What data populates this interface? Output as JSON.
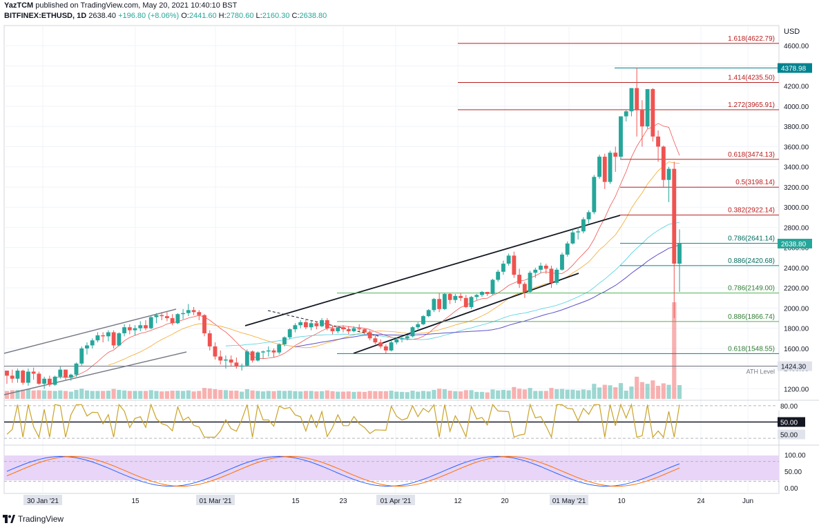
{
  "header": {
    "author": "YazTCM",
    "published": "published on TradingView.com, May 20, 2021 10:40:10 BST",
    "symbol": "BITFINEX:ETHUSD, 1D",
    "last": "2638.40",
    "change": "+196.80 (+8.06%)",
    "o_label": "O:",
    "o": "2441.60",
    "h_label": "H:",
    "h": "2780.60",
    "l_label": "L:",
    "l": "2160.30",
    "c_label": "C:",
    "c": "2638.80"
  },
  "currency": "USD",
  "footer_logo": "TradingView",
  "colors": {
    "up": "#26a69a",
    "down": "#ef5350",
    "fib": "#b71c1c",
    "green_line": "#4caf50",
    "teal_line": "#00838f",
    "rsi": "#c9a227",
    "stoch_bg": "#e8d5f7"
  },
  "chart_data": {
    "type": "candlestick",
    "symbol": "BITFINEX:ETHUSD",
    "timeframe": "1D",
    "price_axis": {
      "ticks": [
        "1200.00",
        "1400.00",
        "1600.00",
        "1800.00",
        "2000.00",
        "2200.00",
        "2400.00",
        "2600.00",
        "2800.00",
        "3000.00",
        "3200.00",
        "3400.00",
        "3600.00",
        "3800.00",
        "4000.00",
        "4200.00",
        "4400.00",
        "4600.00"
      ],
      "range": [
        1100,
        4800
      ]
    },
    "x_axis": {
      "ticks": [
        "30 Jan '21",
        "15",
        "01 Mar '21",
        "15",
        "23",
        "01 Apr '21",
        "12",
        "20",
        "01 May '21",
        "10",
        "24",
        "Jun"
      ]
    },
    "price_labels": {
      "current": "2638.80",
      "high": "4378.98",
      "ath": "1424.30",
      "ath_label": "ATH Level"
    },
    "fib_levels": [
      {
        "label": "1.618(4622.79)",
        "value": 4622.79
      },
      {
        "label": "1.414(4235.50)",
        "value": 4235.5
      },
      {
        "label": "1.272(3965.91)",
        "value": 3965.91
      },
      {
        "label": "0.618(3474.13)",
        "value": 3474.13
      },
      {
        "label": "0.5(3198.14)",
        "value": 3198.14
      },
      {
        "label": "0.382(2922.14)",
        "value": 2922.14
      },
      {
        "label": "0.786(2641.14)",
        "value": 2641.14
      },
      {
        "label": "0.886(2420.68)",
        "value": 2420.68
      },
      {
        "label": "0.786(2149.00)",
        "value": 2149.0
      },
      {
        "label": "0.886(1866.74)",
        "value": 1866.74
      },
      {
        "label": "0.618(1548.55)",
        "value": 1548.55
      }
    ],
    "candles": [
      [
        1380,
        1350,
        1250,
        1330
      ],
      [
        1330,
        1390,
        1260,
        1300
      ],
      [
        1300,
        1400,
        1260,
        1380
      ],
      [
        1380,
        1390,
        1240,
        1260
      ],
      [
        1260,
        1400,
        1230,
        1370
      ],
      [
        1370,
        1410,
        1290,
        1350
      ],
      [
        1350,
        1370,
        1240,
        1250
      ],
      [
        1250,
        1320,
        1200,
        1300
      ],
      [
        1300,
        1330,
        1220,
        1240
      ],
      [
        1240,
        1330,
        1230,
        1320
      ],
      [
        1320,
        1420,
        1300,
        1390
      ],
      [
        1390,
        1390,
        1290,
        1310
      ],
      [
        1310,
        1350,
        1280,
        1340
      ],
      [
        1340,
        1460,
        1320,
        1450
      ],
      [
        1450,
        1620,
        1430,
        1600
      ],
      [
        1600,
        1660,
        1540,
        1630
      ],
      [
        1630,
        1700,
        1600,
        1680
      ],
      [
        1680,
        1760,
        1660,
        1730
      ],
      [
        1730,
        1760,
        1660,
        1720
      ],
      [
        1720,
        1780,
        1670,
        1760
      ],
      [
        1760,
        1780,
        1600,
        1630
      ],
      [
        1630,
        1760,
        1620,
        1750
      ],
      [
        1750,
        1840,
        1720,
        1810
      ],
      [
        1810,
        1840,
        1740,
        1780
      ],
      [
        1780,
        1830,
        1730,
        1800
      ],
      [
        1800,
        1870,
        1770,
        1830
      ],
      [
        1830,
        1880,
        1780,
        1800
      ],
      [
        1800,
        1920,
        1790,
        1910
      ],
      [
        1910,
        1950,
        1850,
        1930
      ],
      [
        1930,
        1960,
        1880,
        1920
      ],
      [
        1920,
        1960,
        1870,
        1900
      ],
      [
        1900,
        1940,
        1830,
        1850
      ],
      [
        1850,
        1950,
        1840,
        1940
      ],
      [
        1940,
        1990,
        1890,
        1950
      ],
      [
        1950,
        2040,
        1920,
        1980
      ],
      [
        1980,
        2010,
        1930,
        1960
      ],
      [
        1960,
        1980,
        1880,
        1930
      ],
      [
        1930,
        1940,
        1720,
        1750
      ],
      [
        1750,
        1780,
        1580,
        1620
      ],
      [
        1620,
        1660,
        1490,
        1520
      ],
      [
        1520,
        1580,
        1440,
        1480
      ],
      [
        1480,
        1530,
        1400,
        1490
      ],
      [
        1490,
        1530,
        1420,
        1460
      ],
      [
        1460,
        1510,
        1400,
        1420
      ],
      [
        1420,
        1450,
        1380,
        1430
      ],
      [
        1430,
        1590,
        1420,
        1570
      ],
      [
        1570,
        1580,
        1460,
        1480
      ],
      [
        1480,
        1570,
        1470,
        1560
      ],
      [
        1560,
        1580,
        1500,
        1570
      ],
      [
        1570,
        1620,
        1520,
        1580
      ],
      [
        1580,
        1600,
        1510,
        1560
      ],
      [
        1560,
        1650,
        1540,
        1640
      ],
      [
        1640,
        1720,
        1620,
        1710
      ],
      [
        1710,
        1800,
        1690,
        1790
      ],
      [
        1790,
        1850,
        1760,
        1830
      ],
      [
        1830,
        1880,
        1800,
        1860
      ],
      [
        1860,
        1890,
        1790,
        1810
      ],
      [
        1810,
        1880,
        1780,
        1850
      ],
      [
        1850,
        1870,
        1790,
        1820
      ],
      [
        1820,
        1900,
        1810,
        1880
      ],
      [
        1880,
        1900,
        1780,
        1800
      ],
      [
        1800,
        1830,
        1740,
        1770
      ],
      [
        1770,
        1820,
        1750,
        1810
      ],
      [
        1810,
        1830,
        1760,
        1790
      ],
      [
        1790,
        1820,
        1740,
        1770
      ],
      [
        1770,
        1820,
        1760,
        1800
      ],
      [
        1800,
        1840,
        1770,
        1790
      ],
      [
        1790,
        1800,
        1740,
        1760
      ],
      [
        1760,
        1780,
        1680,
        1700
      ],
      [
        1700,
        1730,
        1640,
        1660
      ],
      [
        1660,
        1690,
        1600,
        1620
      ],
      [
        1620,
        1640,
        1550,
        1580
      ],
      [
        1580,
        1680,
        1570,
        1660
      ],
      [
        1660,
        1710,
        1640,
        1690
      ],
      [
        1690,
        1720,
        1660,
        1700
      ],
      [
        1700,
        1730,
        1680,
        1720
      ],
      [
        1720,
        1820,
        1710,
        1810
      ],
      [
        1810,
        1860,
        1790,
        1840
      ],
      [
        1840,
        1930,
        1830,
        1920
      ],
      [
        1920,
        1990,
        1910,
        1980
      ],
      [
        1980,
        2100,
        1960,
        2090
      ],
      [
        2090,
        2150,
        1960,
        1990
      ],
      [
        1990,
        2150,
        1980,
        2140
      ],
      [
        2140,
        2150,
        2040,
        2080
      ],
      [
        2080,
        2140,
        2050,
        2120
      ],
      [
        2120,
        2150,
        2070,
        2100
      ],
      [
        2100,
        2130,
        2000,
        2010
      ],
      [
        2010,
        2120,
        1990,
        2110
      ],
      [
        2110,
        2140,
        2080,
        2130
      ],
      [
        2130,
        2170,
        2110,
        2160
      ],
      [
        2160,
        2160,
        2120,
        2140
      ],
      [
        2140,
        2290,
        2130,
        2280
      ],
      [
        2280,
        2380,
        2260,
        2360
      ],
      [
        2360,
        2470,
        2330,
        2440
      ],
      [
        2440,
        2540,
        2420,
        2520
      ],
      [
        2520,
        2560,
        2300,
        2330
      ],
      [
        2330,
        2390,
        2200,
        2240
      ],
      [
        2240,
        2260,
        2100,
        2160
      ],
      [
        2160,
        2370,
        2150,
        2350
      ],
      [
        2350,
        2400,
        2300,
        2380
      ],
      [
        2380,
        2450,
        2350,
        2420
      ],
      [
        2420,
        2440,
        2340,
        2390
      ],
      [
        2390,
        2420,
        2200,
        2250
      ],
      [
        2250,
        2400,
        2230,
        2380
      ],
      [
        2380,
        2550,
        2370,
        2530
      ],
      [
        2530,
        2660,
        2510,
        2640
      ],
      [
        2640,
        2780,
        2630,
        2750
      ],
      [
        2750,
        2800,
        2680,
        2760
      ],
      [
        2760,
        2900,
        2740,
        2880
      ],
      [
        2880,
        2970,
        2840,
        2950
      ],
      [
        2950,
        3320,
        2930,
        3300
      ],
      [
        3300,
        3520,
        3280,
        3500
      ],
      [
        3500,
        3530,
        3180,
        3250
      ],
      [
        3250,
        3560,
        3230,
        3540
      ],
      [
        3540,
        3600,
        3350,
        3500
      ],
      [
        3500,
        3900,
        3480,
        3900
      ],
      [
        3900,
        3960,
        3850,
        3950
      ],
      [
        3950,
        4180,
        3900,
        4180
      ],
      [
        4180,
        4380,
        3700,
        3960
      ],
      [
        3960,
        4060,
        3600,
        3800
      ],
      [
        3800,
        4170,
        3780,
        4170
      ],
      [
        4170,
        4180,
        3650,
        3700
      ],
      [
        3700,
        3760,
        3450,
        3600
      ],
      [
        3600,
        3610,
        3200,
        3270
      ],
      [
        3270,
        3400,
        3050,
        3380
      ],
      [
        3380,
        3450,
        1900,
        2440
      ],
      [
        2440,
        2780,
        2160,
        2638
      ]
    ],
    "volume_note": "volume histogram per candle",
    "rsi": {
      "levels": [
        "80.00",
        "50.00",
        "50.00"
      ]
    },
    "stoch": {
      "levels": [
        "100.00",
        "50.00",
        "0.00"
      ]
    }
  }
}
